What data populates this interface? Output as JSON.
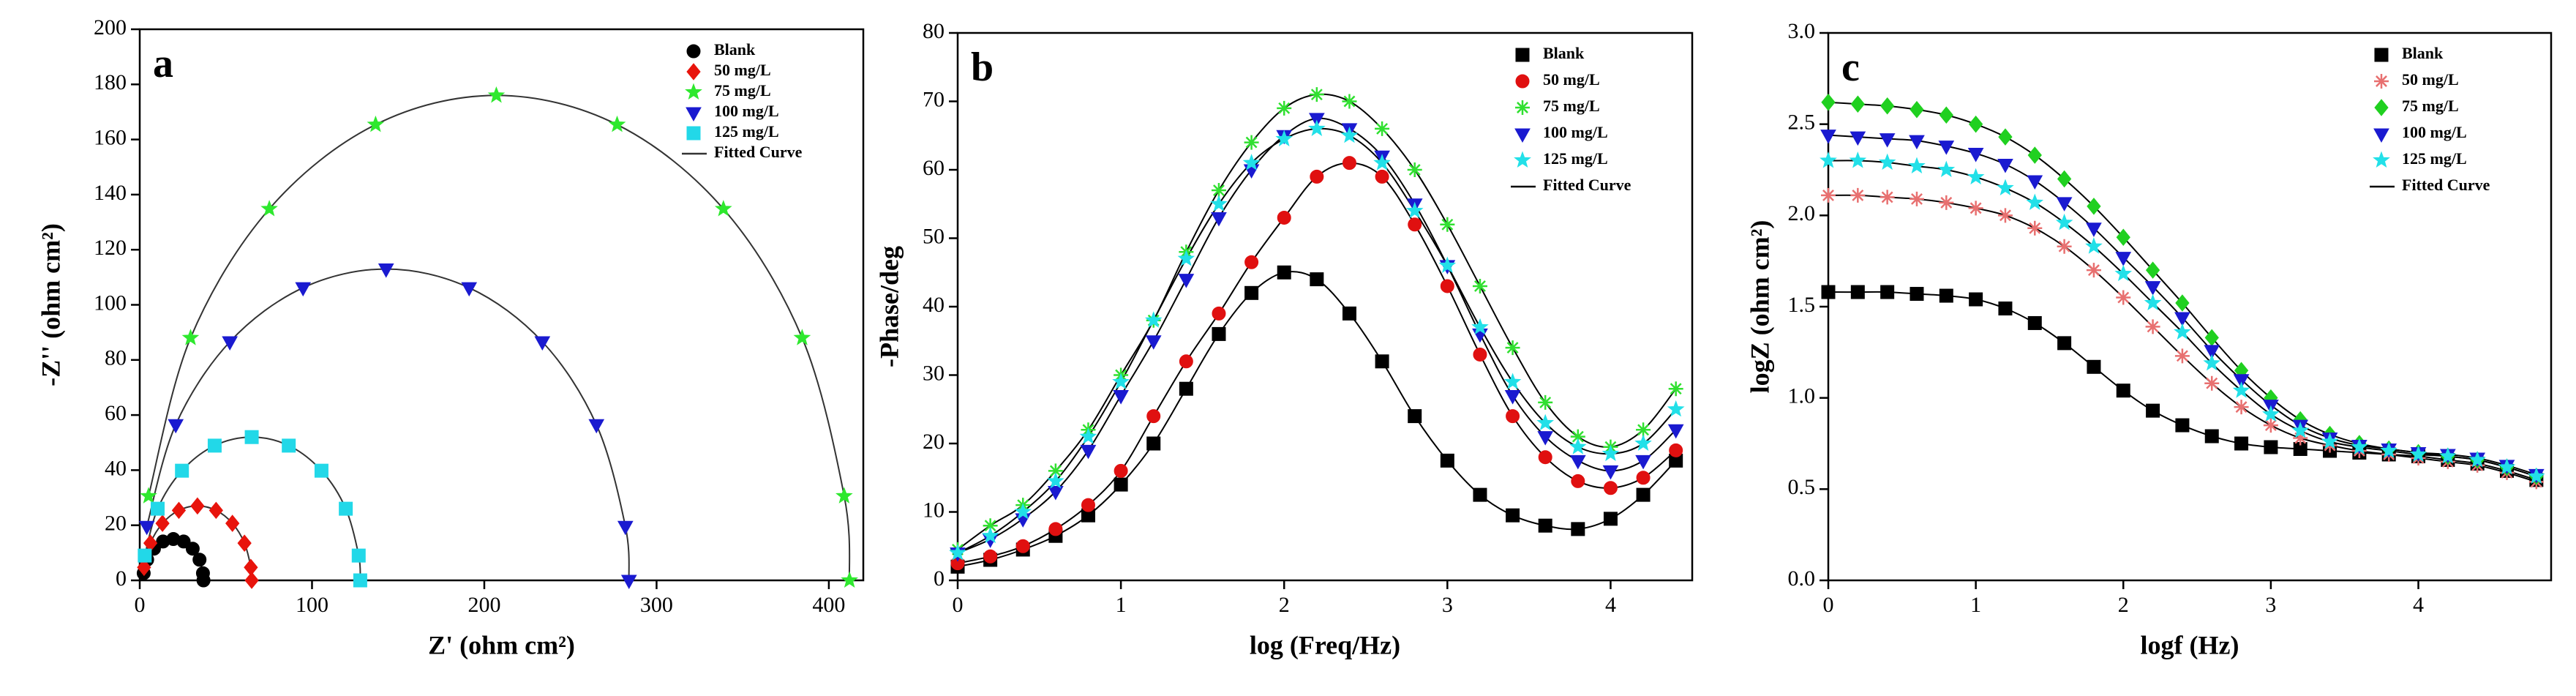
{
  "chart_data": [
    {
      "type": "scatter",
      "panel_label": "a",
      "x_label": "Z' (ohm cm²)",
      "y_label": "-Z'' (ohm cm²)",
      "xlim": [
        0,
        420
      ],
      "xticks": [
        0,
        100,
        200,
        300,
        400
      ],
      "ylim": [
        0,
        200
      ],
      "yticks": [
        0,
        20,
        40,
        60,
        80,
        100,
        120,
        140,
        160,
        180,
        200
      ],
      "legend": "upper right",
      "fit_label": "Fitted Curve",
      "fit_color": "#333333",
      "series": [
        {
          "name": "Blank",
          "color": "#000000",
          "marker": "circle",
          "x": [
            2.3,
            4.3,
            8.25,
            13.5,
            19.5,
            25.5,
            30.75,
            34.7,
            36.7,
            37
          ],
          "values": [
            2.6,
            7.5,
            11.5,
            14.1,
            15,
            14.1,
            11.5,
            7.5,
            2.6,
            0
          ]
        },
        {
          "name": "50 mg/L",
          "color": "#e8140c",
          "marker": "diamond",
          "x": [
            2.5,
            6.2,
            13.2,
            22.7,
            33.5,
            44.3,
            53.8,
            60.8,
            64.5,
            65
          ],
          "values": [
            4.7,
            13.5,
            20.7,
            25.4,
            27,
            25.4,
            20.7,
            13.5,
            4.7,
            0
          ]
        },
        {
          "name": "75 mg/L",
          "color": "#2ee82e",
          "marker": "star",
          "x": [
            5.1,
            29.5,
            75.2,
            136.9,
            207,
            277.1,
            338.8,
            384.5,
            408.9,
            412
          ],
          "values": [
            30.6,
            88,
            134.8,
            165.4,
            176,
            165.4,
            134.8,
            88,
            30.6,
            0
          ]
        },
        {
          "name": "100 mg/L",
          "color": "#1a1ad0",
          "marker": "triangle-down",
          "x": [
            4.1,
            20.9,
            52.3,
            94.8,
            143,
            191.2,
            233.7,
            265.1,
            281.9,
            284
          ],
          "values": [
            19.6,
            56.5,
            86.6,
            106.2,
            113,
            106.2,
            86.6,
            56.5,
            19.6,
            0
          ]
        },
        {
          "name": "125 mg/L",
          "color": "#22d8e8",
          "marker": "square",
          "x": [
            2.9,
            10.4,
            24.5,
            43.5,
            65,
            86.5,
            105.5,
            119.6,
            127.1,
            128
          ],
          "values": [
            9.0,
            26,
            39.8,
            48.9,
            52,
            48.9,
            39.8,
            26,
            9.0,
            0
          ]
        }
      ]
    },
    {
      "type": "scatter",
      "panel_label": "b",
      "x_label": "log (Freq/Hz)",
      "y_label": "-Phase/deg",
      "xlim": [
        0,
        4.5
      ],
      "xticks": [
        0,
        1,
        2,
        3,
        4
      ],
      "ylim": [
        0,
        80
      ],
      "yticks": [
        0,
        10,
        20,
        30,
        40,
        50,
        60,
        70,
        80
      ],
      "legend": "upper right",
      "fit_label": "Fitted Curve",
      "fit_color": "#000000",
      "x": [
        0,
        0.2,
        0.4,
        0.6,
        0.8,
        1.0,
        1.2,
        1.4,
        1.6,
        1.8,
        2.0,
        2.2,
        2.4,
        2.6,
        2.8,
        3.0,
        3.2,
        3.4,
        3.6,
        3.8,
        4.0,
        4.2,
        4.4
      ],
      "series": [
        {
          "name": "Blank",
          "color": "#000000",
          "marker": "square",
          "values": [
            2,
            3,
            4.5,
            6.5,
            9.5,
            14,
            20,
            28,
            36,
            42,
            45,
            44,
            39,
            32,
            24,
            17.5,
            12.5,
            9.5,
            8,
            7.5,
            9,
            12.5,
            17.5
          ]
        },
        {
          "name": "50 mg/L",
          "color": "#e01010",
          "marker": "circle",
          "values": [
            2.5,
            3.5,
            5,
            7.5,
            11,
            16,
            24,
            32,
            39,
            46.5,
            53,
            59,
            61,
            59,
            52,
            43,
            33,
            24,
            18,
            14.5,
            13.5,
            15,
            19
          ]
        },
        {
          "name": "75 mg/L",
          "color": "#30e030",
          "marker": "asterisk",
          "values": [
            4.5,
            8,
            11,
            16,
            22,
            30,
            38,
            48,
            57,
            64,
            69,
            71,
            70,
            66,
            60,
            52,
            43,
            34,
            26,
            21,
            19.5,
            22,
            28
          ]
        },
        {
          "name": "100 mg/L",
          "color": "#1a1ad0",
          "marker": "triangle-down",
          "values": [
            4,
            6,
            9,
            13,
            19,
            27,
            35,
            44,
            53,
            60,
            65,
            67.5,
            66,
            62,
            55,
            46,
            36,
            27,
            21,
            17.5,
            16,
            17.5,
            22
          ]
        },
        {
          "name": "125 mg/L",
          "color": "#22e0e8",
          "marker": "star",
          "values": [
            4,
            6.5,
            10,
            14.5,
            21,
            29,
            38,
            47,
            55,
            61,
            64.5,
            66,
            65,
            61,
            54,
            46,
            37,
            29,
            23,
            19.5,
            18.5,
            20,
            25
          ]
        }
      ]
    },
    {
      "type": "scatter",
      "panel_label": "c",
      "x_label": "logf (Hz)",
      "y_label": "logZ (ohm cm²)",
      "xlim": [
        0,
        4.9
      ],
      "xticks": [
        0,
        1,
        2,
        3,
        4
      ],
      "ylim": [
        0,
        3.0
      ],
      "yticks": [
        {
          "value": 0,
          "label": "0.0"
        },
        0.5,
        {
          "value": 1,
          "label": "1.0"
        },
        1.5,
        {
          "value": 2,
          "label": "2.0"
        },
        2.5,
        {
          "value": 3,
          "label": "3.0"
        }
      ],
      "legend": "upper right",
      "fit_label": "Fitted Curve",
      "fit_color": "#000000",
      "x": [
        0,
        0.2,
        0.4,
        0.6,
        0.8,
        1.0,
        1.2,
        1.4,
        1.6,
        1.8,
        2.0,
        2.2,
        2.4,
        2.6,
        2.8,
        3.0,
        3.2,
        3.4,
        3.6,
        3.8,
        4.0,
        4.2,
        4.4,
        4.6,
        4.8
      ],
      "series": [
        {
          "name": "Blank",
          "color": "#000000",
          "marker": "square",
          "values": [
            1.58,
            1.58,
            1.58,
            1.57,
            1.56,
            1.54,
            1.49,
            1.41,
            1.3,
            1.17,
            1.04,
            0.93,
            0.85,
            0.79,
            0.75,
            0.73,
            0.72,
            0.71,
            0.7,
            0.69,
            0.68,
            0.66,
            0.64,
            0.6,
            0.55
          ]
        },
        {
          "name": "50 mg/L",
          "color": "#e87070",
          "marker": "asterisk",
          "values": [
            2.11,
            2.11,
            2.1,
            2.09,
            2.07,
            2.04,
            2.0,
            1.93,
            1.83,
            1.7,
            1.55,
            1.39,
            1.23,
            1.08,
            0.95,
            0.85,
            0.78,
            0.74,
            0.71,
            0.69,
            0.67,
            0.65,
            0.63,
            0.59,
            0.54
          ]
        },
        {
          "name": "75 mg/L",
          "color": "#20d020",
          "marker": "diamond",
          "values": [
            2.62,
            2.61,
            2.6,
            2.58,
            2.55,
            2.5,
            2.43,
            2.33,
            2.2,
            2.05,
            1.88,
            1.7,
            1.52,
            1.33,
            1.15,
            1.0,
            0.88,
            0.8,
            0.75,
            0.72,
            0.7,
            0.68,
            0.66,
            0.62,
            0.57
          ]
        },
        {
          "name": "100 mg/L",
          "color": "#1a1ad0",
          "marker": "triangle-down",
          "values": [
            2.44,
            2.43,
            2.42,
            2.41,
            2.38,
            2.34,
            2.28,
            2.19,
            2.07,
            1.93,
            1.77,
            1.61,
            1.44,
            1.26,
            1.1,
            0.96,
            0.85,
            0.78,
            0.74,
            0.72,
            0.7,
            0.69,
            0.67,
            0.63,
            0.58
          ]
        },
        {
          "name": "125 mg/L",
          "color": "#22e0e8",
          "marker": "star",
          "values": [
            2.3,
            2.3,
            2.29,
            2.27,
            2.25,
            2.21,
            2.15,
            2.07,
            1.96,
            1.83,
            1.68,
            1.52,
            1.36,
            1.19,
            1.04,
            0.91,
            0.82,
            0.76,
            0.73,
            0.71,
            0.69,
            0.68,
            0.66,
            0.62,
            0.57
          ]
        }
      ]
    }
  ]
}
